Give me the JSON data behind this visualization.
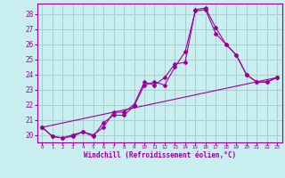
{
  "xlabel": "Windchill (Refroidissement éolien,°C)",
  "ylabel": "",
  "background_color": "#c8eef0",
  "line_color": "#990099",
  "grid_color": "#aacccc",
  "xlim": [
    -0.5,
    23.5
  ],
  "ylim": [
    19.5,
    28.7
  ],
  "yticks": [
    20,
    21,
    22,
    23,
    24,
    25,
    26,
    27,
    28
  ],
  "xticks": [
    0,
    1,
    2,
    3,
    4,
    5,
    6,
    7,
    8,
    9,
    10,
    11,
    12,
    13,
    14,
    15,
    16,
    17,
    18,
    19,
    20,
    21,
    22,
    23
  ],
  "line1_x": [
    0,
    1,
    2,
    3,
    4,
    5,
    6,
    7,
    8,
    9,
    10,
    11,
    12,
    13,
    14,
    15,
    16,
    17,
    18,
    19,
    20,
    21,
    22,
    23
  ],
  "line1_y": [
    20.5,
    19.9,
    19.8,
    20.0,
    20.2,
    20.0,
    20.5,
    21.5,
    21.5,
    22.0,
    23.5,
    23.3,
    23.8,
    24.7,
    24.8,
    28.3,
    28.4,
    27.1,
    26.0,
    25.3,
    24.0,
    23.5,
    23.5,
    23.8
  ],
  "line2_x": [
    0,
    1,
    2,
    3,
    4,
    5,
    6,
    7,
    8,
    9,
    10,
    11,
    12,
    13,
    14,
    15,
    16,
    17,
    18,
    19,
    20,
    21,
    22,
    23
  ],
  "line2_y": [
    20.5,
    19.9,
    19.8,
    19.9,
    20.2,
    19.9,
    20.8,
    21.3,
    21.3,
    21.9,
    23.3,
    23.5,
    23.3,
    24.5,
    25.5,
    28.2,
    28.3,
    26.7,
    26.0,
    25.3,
    24.0,
    23.5,
    23.5,
    23.8
  ],
  "line3_x": [
    0,
    23
  ],
  "line3_y": [
    20.5,
    23.8
  ]
}
